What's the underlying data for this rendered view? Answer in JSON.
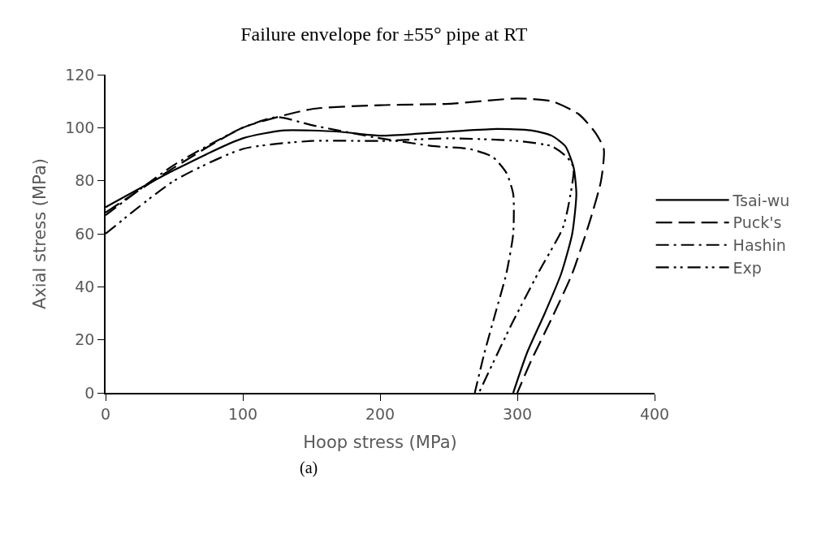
{
  "chart_data": {
    "type": "line",
    "title": "Failure envelope for ±55° pipe at RT",
    "xlabel": "Hoop stress (MPa)",
    "ylabel": "Axial stress (MPa)",
    "annotations": [
      "(a)"
    ],
    "xlim": [
      0,
      400
    ],
    "xticks": [
      0,
      100,
      200,
      300,
      400
    ],
    "ylim": [
      0,
      120
    ],
    "yticks": [
      0,
      20,
      40,
      60,
      80,
      100,
      120
    ],
    "grid": false,
    "legend": "right",
    "marker": "none",
    "series": [
      {
        "name": "Tsai-wu",
        "color": "#000000",
        "line_style": "solid",
        "x": [
          0,
          50,
          100,
          130,
          170,
          200,
          250,
          285,
          310,
          325,
          335,
          341,
          343,
          340,
          332,
          320,
          307,
          297
        ],
        "values": [
          70,
          84,
          96,
          99,
          98.5,
          97,
          98.5,
          99.5,
          99,
          97,
          93,
          85,
          75,
          60,
          45,
          30,
          15,
          0
        ]
      },
      {
        "name": "Puck's",
        "color": "#000000",
        "line_style": "dashed",
        "x": [
          0,
          50,
          100,
          150,
          200,
          250,
          300,
          325,
          345,
          357,
          363,
          361,
          353,
          340,
          325,
          310,
          300
        ],
        "values": [
          68,
          85,
          100,
          107,
          108.5,
          109,
          111,
          110,
          105,
          98,
          92,
          80,
          65,
          45,
          28,
          12,
          0
        ]
      },
      {
        "name": "Hashin",
        "color": "#000000",
        "line_style": "dashdot",
        "x": [
          0,
          50,
          100,
          125,
          150,
          200,
          240,
          265,
          282,
          292,
          297,
          297,
          292,
          284,
          276,
          269
        ],
        "values": [
          67,
          86,
          100,
          104,
          101,
          96,
          93,
          92,
          89,
          83,
          75,
          60,
          45,
          30,
          15,
          0
        ]
      },
      {
        "name": "Exp",
        "color": "#000000",
        "line_style": "dashdotdot",
        "x": [
          0,
          50,
          100,
          150,
          200,
          250,
          300,
          325,
          336,
          341,
          337,
          333,
          315,
          295,
          272
        ],
        "values": [
          60,
          80,
          92,
          95,
          95,
          96,
          95,
          93,
          89,
          85,
          70,
          62,
          45,
          25,
          0
        ]
      }
    ]
  }
}
